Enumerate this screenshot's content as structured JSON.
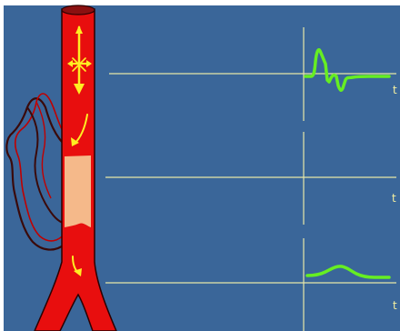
{
  "colors": {
    "background": "#ffffff",
    "panel": "#3a6699",
    "vessel": "#e80e0e",
    "vessel_outline": "#2a0000",
    "vessel_top": "#8a1010",
    "collateral_outline": "#3a0a0a",
    "plaque": "#f5b98a",
    "flow_arrow": "#ffee22",
    "axis_line": "#e8e8a8",
    "waveform": "#66ee22"
  },
  "icons": {
    "flow_arrows": "flow-direction-arrows",
    "pressure_waves": "pressure-waveform-traces"
  },
  "panels": [
    {
      "id": "top",
      "axis_label": "t",
      "waveform": "biphasic-spike"
    },
    {
      "id": "middle",
      "axis_label": "t",
      "waveform": "flat"
    },
    {
      "id": "bottom",
      "axis_label": "t",
      "waveform": "damped-hump"
    }
  ]
}
